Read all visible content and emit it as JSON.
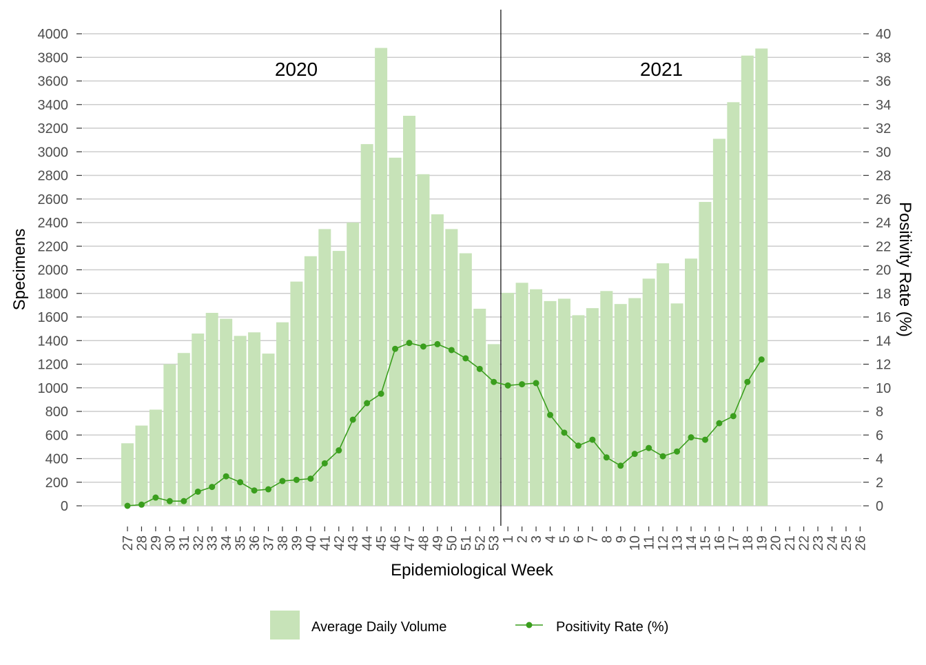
{
  "chart_data": {
    "type": "bar",
    "xlabel": "Epidemiological Week",
    "ylabel": "Specimens",
    "ylabel_right": "Positivity Rate (%)",
    "ylim": [
      0,
      4000
    ],
    "ylim_right": [
      0,
      40
    ],
    "y_ticks": [
      0,
      200,
      400,
      600,
      800,
      1000,
      1200,
      1400,
      1600,
      1800,
      2000,
      2200,
      2400,
      2600,
      2800,
      3000,
      3200,
      3400,
      3600,
      3800,
      4000
    ],
    "y_ticks_right": [
      0,
      2,
      4,
      6,
      8,
      10,
      12,
      14,
      16,
      18,
      20,
      22,
      24,
      26,
      28,
      30,
      32,
      34,
      36,
      38,
      40
    ],
    "grid": true,
    "legend_position": "bottom",
    "categories": [
      "27",
      "28",
      "29",
      "30",
      "31",
      "32",
      "33",
      "34",
      "35",
      "36",
      "37",
      "38",
      "39",
      "40",
      "41",
      "42",
      "43",
      "44",
      "45",
      "46",
      "47",
      "48",
      "49",
      "50",
      "51",
      "52",
      "53",
      "1",
      "2",
      "3",
      "4",
      "5",
      "6",
      "7",
      "8",
      "9",
      "10",
      "11",
      "12",
      "13",
      "14",
      "15",
      "16",
      "17",
      "18",
      "19",
      "20",
      "21",
      "22",
      "23",
      "24",
      "25",
      "26"
    ],
    "year_labels": [
      "2020",
      "2021"
    ],
    "series": [
      {
        "name": "Average Daily Volume",
        "type": "bar",
        "axis": "left",
        "color": "#c7e3b8",
        "values": [
          530,
          680,
          815,
          1200,
          1295,
          1460,
          1635,
          1585,
          1440,
          1470,
          1290,
          1555,
          1900,
          2115,
          2345,
          2160,
          2400,
          3065,
          3880,
          2950,
          3305,
          2810,
          2470,
          2345,
          2140,
          1670,
          1370,
          1805,
          1890,
          1835,
          1735,
          1755,
          1615,
          1675,
          1820,
          1710,
          1760,
          1925,
          2055,
          1715,
          2095,
          2575,
          3110,
          3420,
          3815,
          3875,
          null,
          null,
          null,
          null,
          null,
          null,
          null
        ]
      },
      {
        "name": "Positivity Rate (%)",
        "type": "line",
        "axis": "right",
        "color": "#3a9e1d",
        "values": [
          0.0,
          0.1,
          0.7,
          0.4,
          0.4,
          1.2,
          1.6,
          2.5,
          2.0,
          1.3,
          1.4,
          2.1,
          2.2,
          2.3,
          3.6,
          4.7,
          7.3,
          8.7,
          9.5,
          13.3,
          13.8,
          13.5,
          13.7,
          13.2,
          12.5,
          11.6,
          10.5,
          10.2,
          10.3,
          10.4,
          7.7,
          6.2,
          5.1,
          5.6,
          4.1,
          3.4,
          4.4,
          4.9,
          4.2,
          4.6,
          5.8,
          5.6,
          7.0,
          7.6,
          10.5,
          12.4,
          null,
          null,
          null,
          null,
          null,
          null,
          null
        ]
      }
    ]
  }
}
